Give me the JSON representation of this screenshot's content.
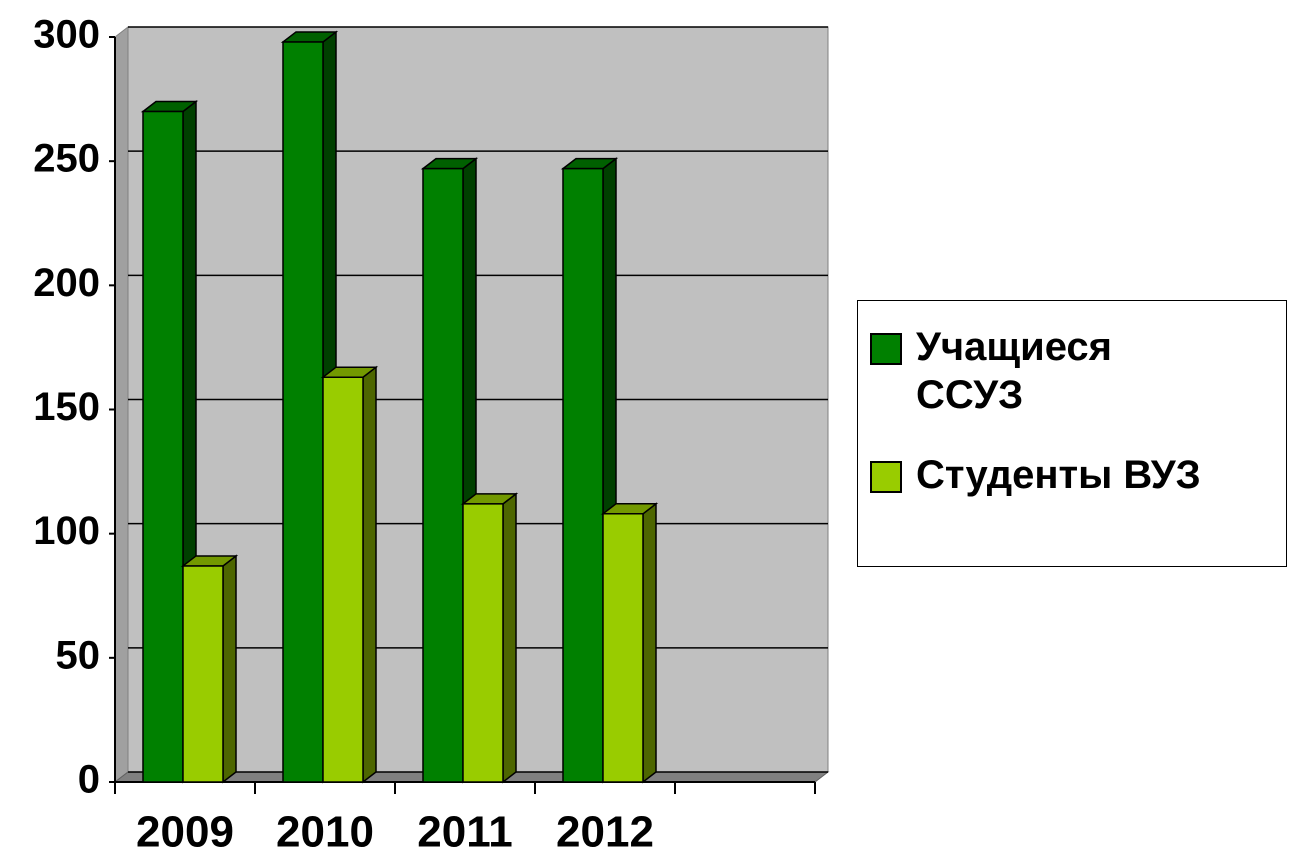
{
  "chart_data": {
    "type": "bar3d",
    "categories": [
      "2009",
      "2010",
      "2011",
      "2012",
      null
    ],
    "series": [
      {
        "name": "Учащиеся ССУЗ",
        "color": "#008000",
        "values": [
          270,
          298,
          247,
          247,
          null
        ]
      },
      {
        "name": "Студенты ВУЗ",
        "color": "#99cc00",
        "values": [
          87,
          163,
          112,
          108,
          null
        ]
      }
    ],
    "ylim": [
      0,
      300
    ],
    "yticks": [
      0,
      50,
      100,
      150,
      200,
      250,
      300
    ],
    "grid": true,
    "legend": "right"
  }
}
